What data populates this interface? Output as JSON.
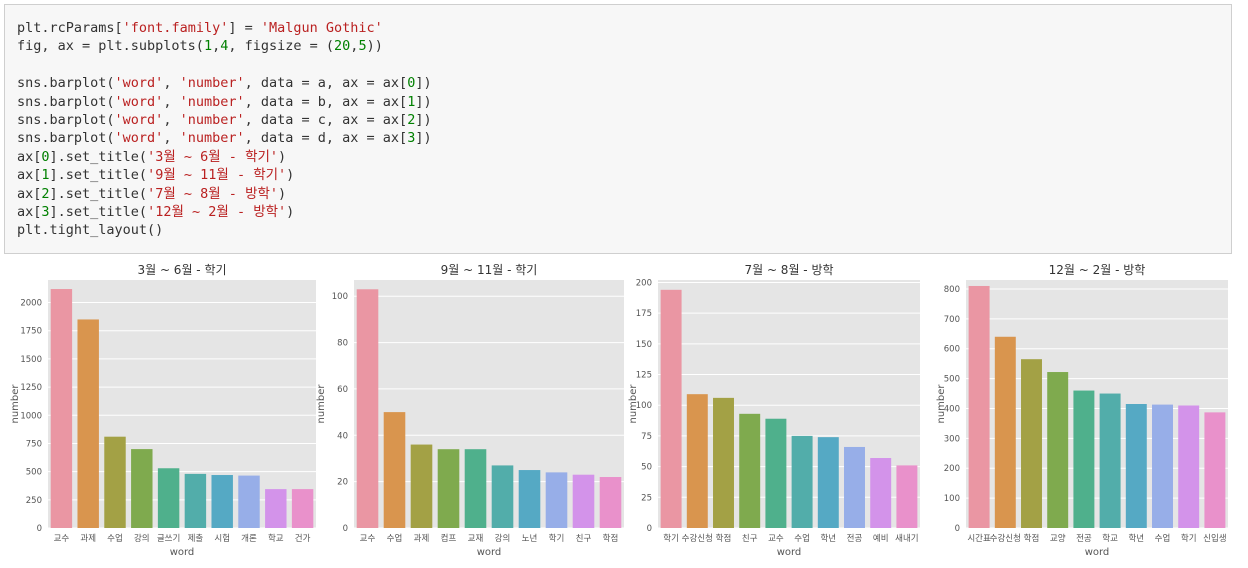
{
  "code_lines": [
    [
      [
        "t",
        "plt.rcParams["
      ],
      [
        "s",
        "'font.family'"
      ],
      [
        "t",
        "] = "
      ],
      [
        "s",
        "'Malgun Gothic'"
      ]
    ],
    [
      [
        "t",
        "fig, ax = plt.subplots("
      ],
      [
        "n",
        "1"
      ],
      [
        "t",
        ","
      ],
      [
        "n",
        "4"
      ],
      [
        "t",
        ", figsize = ("
      ],
      [
        "n",
        "20"
      ],
      [
        "t",
        ","
      ],
      [
        "n",
        "5"
      ],
      [
        "t",
        "))"
      ]
    ],
    [],
    [
      [
        "t",
        "sns.barplot("
      ],
      [
        "s",
        "'word'"
      ],
      [
        "t",
        ", "
      ],
      [
        "s",
        "'number'"
      ],
      [
        "t",
        ", data = a, ax = ax["
      ],
      [
        "n",
        "0"
      ],
      [
        "t",
        "])"
      ]
    ],
    [
      [
        "t",
        "sns.barplot("
      ],
      [
        "s",
        "'word'"
      ],
      [
        "t",
        ", "
      ],
      [
        "s",
        "'number'"
      ],
      [
        "t",
        ", data = b, ax = ax["
      ],
      [
        "n",
        "1"
      ],
      [
        "t",
        "])"
      ]
    ],
    [
      [
        "t",
        "sns.barplot("
      ],
      [
        "s",
        "'word'"
      ],
      [
        "t",
        ", "
      ],
      [
        "s",
        "'number'"
      ],
      [
        "t",
        ", data = c, ax = ax["
      ],
      [
        "n",
        "2"
      ],
      [
        "t",
        "])"
      ]
    ],
    [
      [
        "t",
        "sns.barplot("
      ],
      [
        "s",
        "'word'"
      ],
      [
        "t",
        ", "
      ],
      [
        "s",
        "'number'"
      ],
      [
        "t",
        ", data = d, ax = ax["
      ],
      [
        "n",
        "3"
      ],
      [
        "t",
        "])"
      ]
    ],
    [
      [
        "t",
        "ax["
      ],
      [
        "n",
        "0"
      ],
      [
        "t",
        "].set_title("
      ],
      [
        "s",
        "'3월 ~ 6월 - 학기'"
      ],
      [
        "t",
        ")"
      ]
    ],
    [
      [
        "t",
        "ax["
      ],
      [
        "n",
        "1"
      ],
      [
        "t",
        "].set_title("
      ],
      [
        "s",
        "'9월 ~ 11월 - 학기'"
      ],
      [
        "t",
        ")"
      ]
    ],
    [
      [
        "t",
        "ax["
      ],
      [
        "n",
        "2"
      ],
      [
        "t",
        "].set_title("
      ],
      [
        "s",
        "'7월 ~ 8월 - 방학'"
      ],
      [
        "t",
        ")"
      ]
    ],
    [
      [
        "t",
        "ax["
      ],
      [
        "n",
        "3"
      ],
      [
        "t",
        "].set_title("
      ],
      [
        "s",
        "'12월 ~ 2월 - 방학'"
      ],
      [
        "t",
        ")"
      ]
    ],
    [
      [
        "t",
        "plt.tight_layout()"
      ]
    ]
  ],
  "colors": {
    "plot_bg": "#e5e5e5",
    "grid": "#ffffff",
    "text": "#555555",
    "palette": [
      "#ea96a3",
      "#d9954e",
      "#a3a145",
      "#7faa4e",
      "#4fb08c",
      "#52adaa",
      "#55a9c4",
      "#97aee8",
      "#d393ea",
      "#e991cb"
    ]
  },
  "chart_data": [
    {
      "type": "bar",
      "title": "3월 ~ 6월 - 학기",
      "xlabel": "word",
      "ylabel": "number",
      "ylim": [
        0,
        2200
      ],
      "yticks": [
        0,
        250,
        500,
        750,
        1000,
        1250,
        1500,
        1750,
        2000
      ],
      "categories": [
        "교수",
        "과제",
        "수업",
        "강의",
        "글쓰기",
        "제출",
        "시험",
        "개론",
        "학교",
        "건가"
      ],
      "values": [
        2120,
        1850,
        810,
        700,
        530,
        480,
        470,
        465,
        345,
        345
      ]
    },
    {
      "type": "bar",
      "title": "9월 ~ 11월 - 학기",
      "xlabel": "word",
      "ylabel": "number",
      "ylim": [
        0,
        107
      ],
      "yticks": [
        0,
        20,
        40,
        60,
        80,
        100
      ],
      "categories": [
        "교수",
        "수업",
        "과제",
        "컴프",
        "교재",
        "강의",
        "노년",
        "학기",
        "친구",
        "학점"
      ],
      "values": [
        103,
        50,
        36,
        34,
        34,
        27,
        25,
        24,
        23,
        22
      ]
    },
    {
      "type": "bar",
      "title": "7월 ~ 8월 - 방학",
      "xlabel": "word",
      "ylabel": "number",
      "ylim": [
        0,
        202
      ],
      "yticks": [
        0,
        25,
        50,
        75,
        100,
        125,
        150,
        175,
        200
      ],
      "categories": [
        "학기",
        "수강신청",
        "학점",
        "친구",
        "교수",
        "수업",
        "학년",
        "전공",
        "예비",
        "새내기"
      ],
      "values": [
        194,
        109,
        106,
        93,
        89,
        75,
        74,
        66,
        57,
        51
      ]
    },
    {
      "type": "bar",
      "title": "12월 ~ 2월 - 방학",
      "xlabel": "word",
      "ylabel": "number",
      "ylim": [
        0,
        830
      ],
      "yticks": [
        0,
        100,
        200,
        300,
        400,
        500,
        600,
        700,
        800
      ],
      "categories": [
        "시간표",
        "수강신청",
        "학점",
        "교양",
        "전공",
        "학교",
        "학년",
        "수업",
        "학기",
        "신입생"
      ],
      "values": [
        810,
        640,
        565,
        522,
        460,
        450,
        415,
        413,
        410,
        387
      ]
    }
  ]
}
